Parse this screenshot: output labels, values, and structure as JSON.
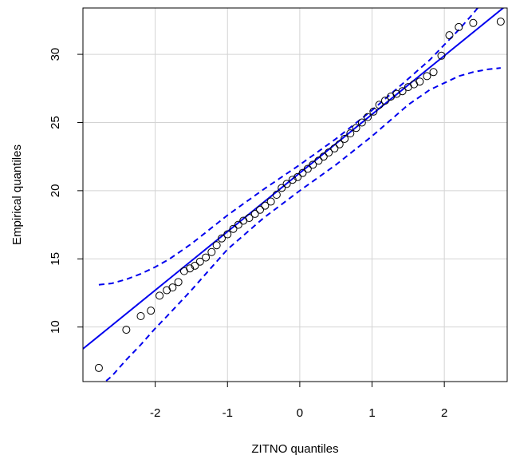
{
  "chart_data": {
    "type": "scatter",
    "x_label": "ZITNO quantiles",
    "y_label": "Empirical quantiles",
    "xlim": [
      -3.0,
      2.87
    ],
    "ylim": [
      6.0,
      33.4
    ],
    "xticks": [
      -2,
      -1,
      0,
      1,
      2
    ],
    "yticks": [
      10,
      15,
      20,
      25,
      30
    ],
    "grid": true,
    "points": {
      "color": "#000000",
      "x": [
        -2.78,
        -2.4,
        -2.2,
        -2.06,
        -1.94,
        -1.84,
        -1.76,
        -1.68,
        -1.6,
        -1.52,
        -1.45,
        -1.38,
        -1.3,
        -1.22,
        -1.15,
        -1.08,
        -1.0,
        -0.92,
        -0.85,
        -0.78,
        -0.7,
        -0.62,
        -0.55,
        -0.48,
        -0.4,
        -0.32,
        -0.25,
        -0.18,
        -0.1,
        -0.03,
        0.04,
        0.11,
        0.18,
        0.26,
        0.33,
        0.4,
        0.48,
        0.55,
        0.62,
        0.7,
        0.78,
        0.86,
        0.94,
        1.02,
        1.1,
        1.18,
        1.26,
        1.34,
        1.42,
        1.5,
        1.58,
        1.66,
        1.76,
        1.85,
        1.96,
        2.07,
        2.2,
        2.4,
        2.78
      ],
      "y": [
        7.0,
        9.8,
        10.8,
        11.2,
        12.3,
        12.7,
        12.9,
        13.3,
        14.1,
        14.3,
        14.5,
        14.8,
        15.1,
        15.5,
        16.0,
        16.5,
        16.8,
        17.2,
        17.5,
        17.8,
        18.0,
        18.3,
        18.6,
        18.9,
        19.2,
        19.7,
        20.2,
        20.5,
        20.8,
        21.0,
        21.3,
        21.6,
        21.9,
        22.2,
        22.5,
        22.8,
        23.1,
        23.4,
        23.8,
        24.2,
        24.6,
        25.0,
        25.4,
        25.8,
        26.3,
        26.6,
        26.9,
        27.1,
        27.3,
        27.6,
        27.8,
        28.0,
        28.4,
        28.7,
        29.9,
        31.4,
        32.0,
        32.3,
        32.4
      ]
    },
    "line": {
      "color": "#0000ee",
      "intercept": 21.3,
      "slope": 4.3
    },
    "envelope": {
      "color": "#0000ee",
      "x": [
        -2.78,
        -2.6,
        -2.4,
        -2.2,
        -2,
        -1.8,
        -1.5,
        -1,
        -0.5,
        0,
        0.5,
        1,
        1.5,
        1.8,
        2,
        2.2,
        2.4,
        2.6,
        2.78
      ],
      "upper": [
        13.1,
        13.2,
        13.5,
        13.9,
        14.4,
        15.0,
        16.1,
        18.2,
        20.1,
        21.9,
        23.8,
        25.9,
        28.2,
        29.6,
        30.7,
        31.8,
        33.0,
        34.3,
        35.5
      ],
      "lower": [
        5.6,
        6.4,
        7.6,
        8.7,
        9.9,
        11.0,
        12.7,
        15.7,
        18.0,
        20.0,
        21.9,
        24.0,
        26.3,
        27.4,
        27.9,
        28.4,
        28.7,
        28.9,
        29.0
      ]
    }
  }
}
